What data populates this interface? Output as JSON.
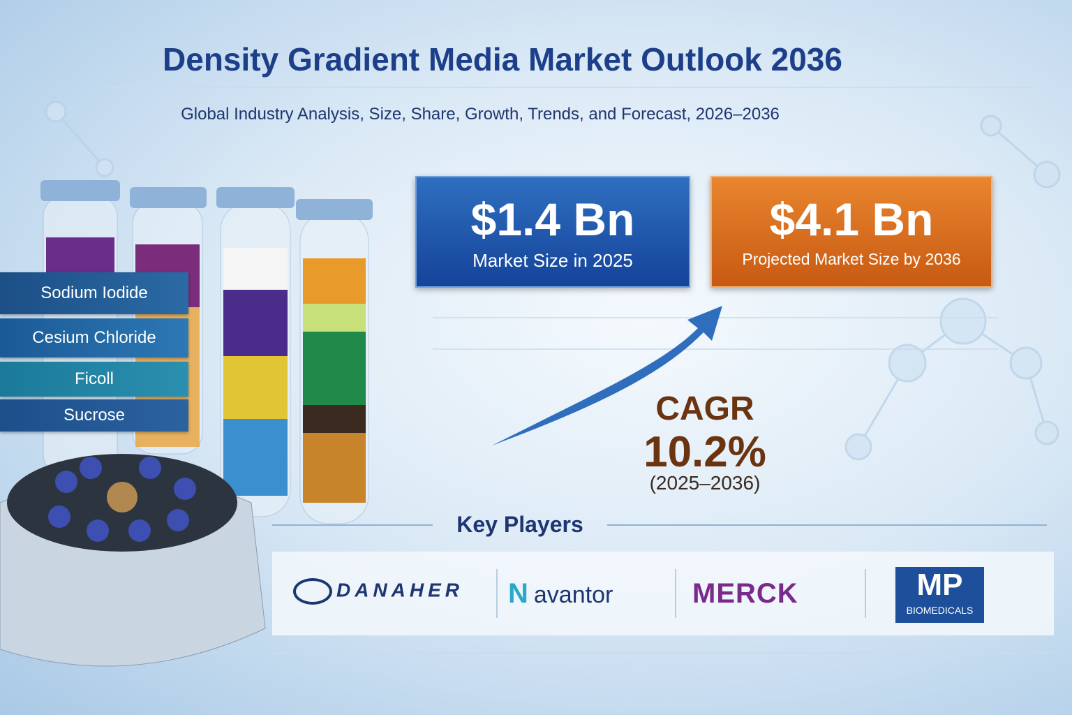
{
  "header": {
    "title": "Density Gradient Media Market Outlook 2036",
    "subtitle": "Global Industry Analysis, Size, Share, Growth, Trends, and Forecast, 2026–2036"
  },
  "stats": [
    {
      "value": "$1.4 Bn",
      "label": "Market Size in 2025"
    },
    {
      "value": "$4.1 Bn",
      "label": "Projected Market Size by 2036"
    }
  ],
  "cagr": {
    "label": "CAGR",
    "value": "10.2%",
    "period": "(2025–2036)"
  },
  "media_types": [
    "Sodium Iodide",
    "Cesium Chloride",
    "Ficoll",
    "Sucrose"
  ],
  "key_players": {
    "heading": "Key Players",
    "companies": [
      {
        "name": "DANAHER"
      },
      {
        "name": "avantor"
      },
      {
        "name": "MERCK"
      },
      {
        "name": "MP",
        "tagline": "BIOMEDICALS"
      }
    ]
  }
}
